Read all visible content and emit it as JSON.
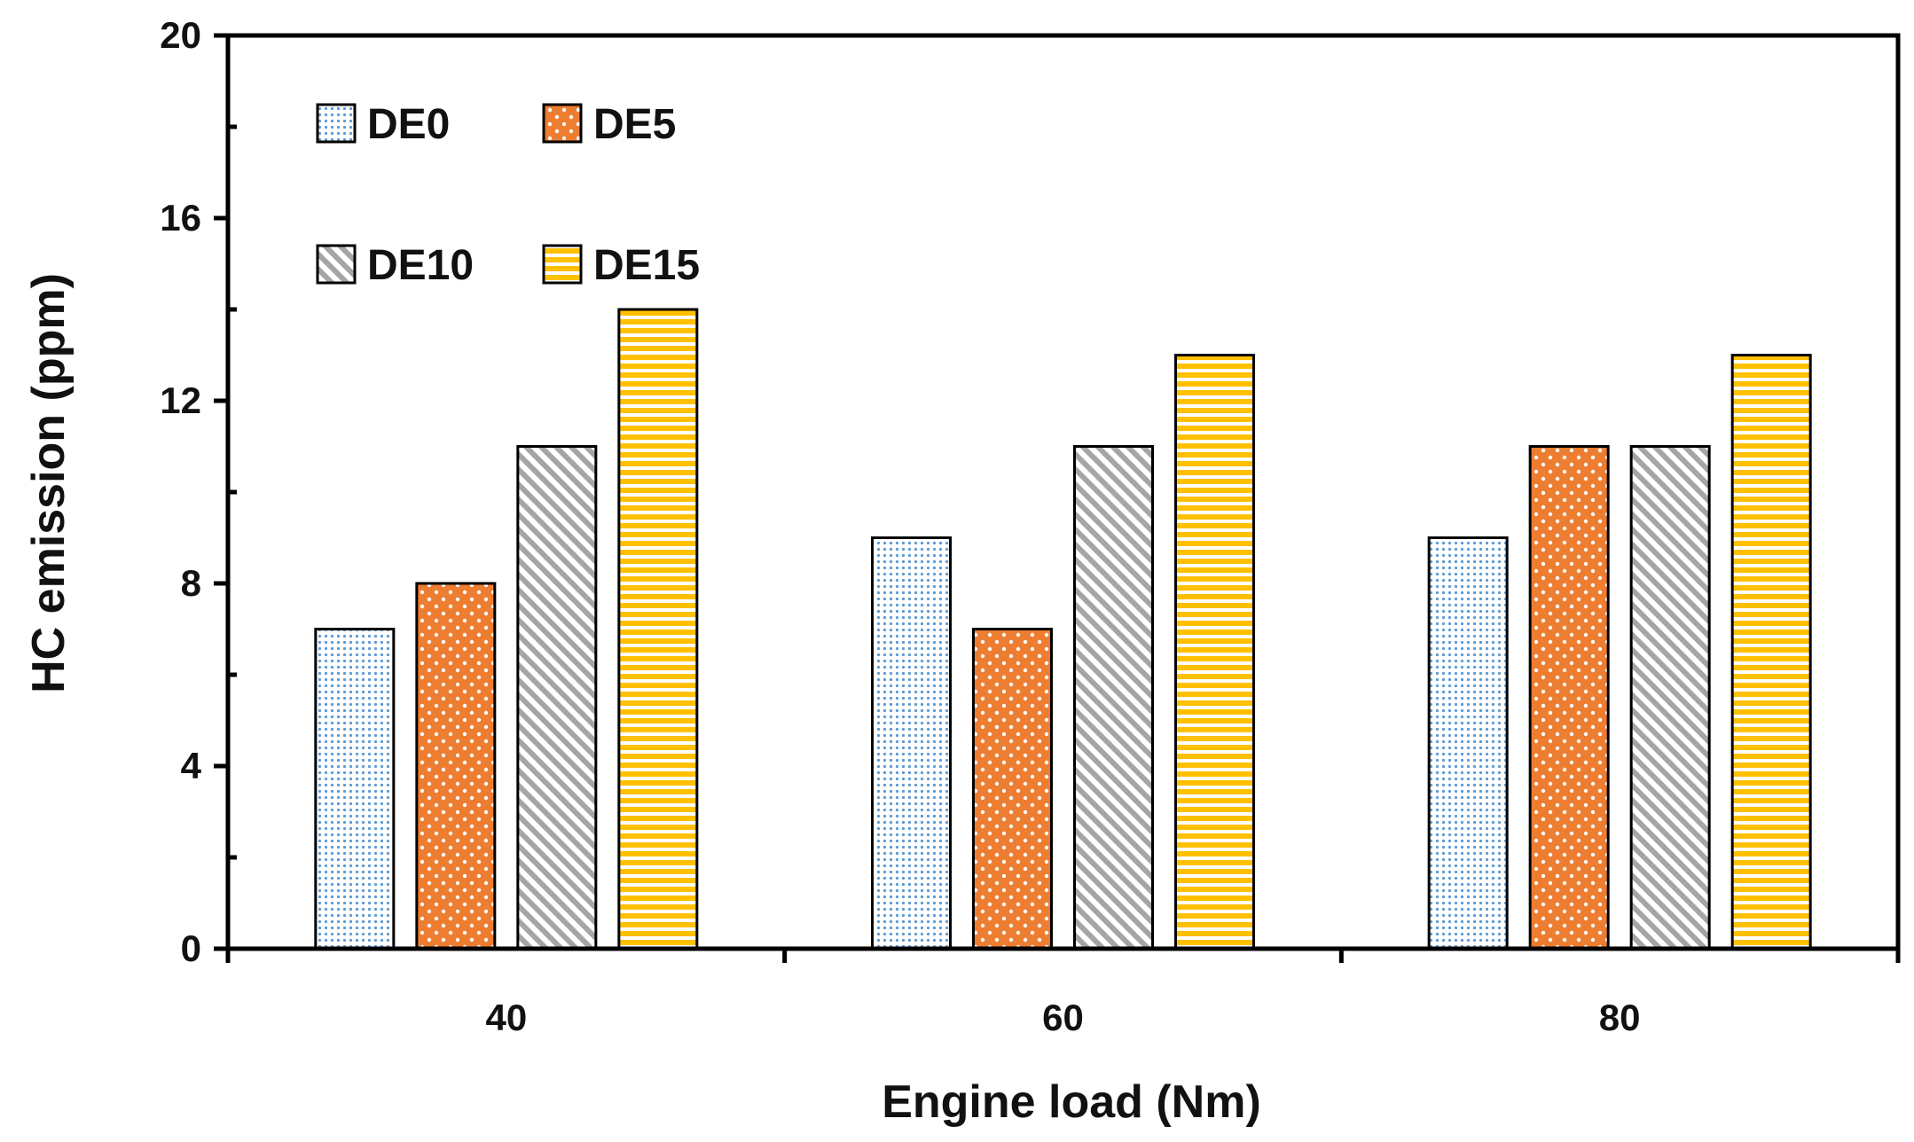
{
  "chart_data": {
    "type": "bar",
    "title": "",
    "xlabel": "Engine load (Nm)",
    "ylabel": "HC emission (ppm)",
    "categories": [
      "40",
      "60",
      "80"
    ],
    "ylim": [
      0,
      20
    ],
    "yticks": [
      0,
      4,
      8,
      12,
      16,
      20
    ],
    "grid": false,
    "legend_position": "top-left",
    "series": [
      {
        "name": "DE0",
        "values": [
          7,
          9,
          9
        ],
        "color": "#5b9bd5",
        "pattern": "small-dots"
      },
      {
        "name": "DE5",
        "values": [
          8,
          7,
          11
        ],
        "color": "#ed7d31",
        "pattern": "white-dots"
      },
      {
        "name": "DE10",
        "values": [
          11,
          11,
          11
        ],
        "color": "#a5a5a5",
        "pattern": "diagonal-stripes"
      },
      {
        "name": "DE15",
        "values": [
          14,
          13,
          13
        ],
        "color": "#ffc000",
        "pattern": "horizontal-stripes"
      }
    ]
  }
}
